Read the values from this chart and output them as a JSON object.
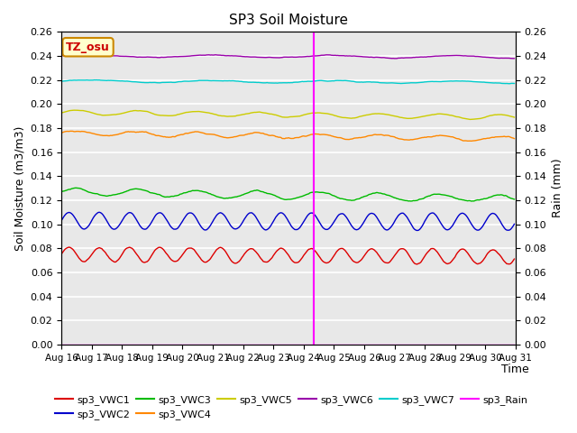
{
  "title": "SP3 Soil Moisture",
  "ylabel_left": "Soil Moisture (m3/m3)",
  "ylabel_right": "Rain (mm)",
  "xlabel": "Time",
  "ylim": [
    0.0,
    0.26
  ],
  "x_tick_labels": [
    "Aug 16",
    "Aug 17",
    "Aug 18",
    "Aug 19",
    "Aug 20",
    "Aug 21",
    "Aug 22",
    "Aug 23",
    "Aug 24",
    "Aug 25",
    "Aug 26",
    "Aug 27",
    "Aug 28",
    "Aug 29",
    "Aug 30",
    "Aug 31"
  ],
  "series_order": [
    "sp3_VWC1",
    "sp3_VWC2",
    "sp3_VWC3",
    "sp3_VWC4",
    "sp3_VWC5",
    "sp3_VWC6",
    "sp3_VWC7"
  ],
  "series": {
    "sp3_VWC1": {
      "color": "#dd0000",
      "base": 0.075,
      "amp": 0.006,
      "period_hours": 24,
      "trend": -0.002,
      "noise_scale": 0.002,
      "seed": 1
    },
    "sp3_VWC2": {
      "color": "#0000cc",
      "base": 0.103,
      "amp": 0.007,
      "period_hours": 24,
      "trend": -0.001,
      "noise_scale": 0.001,
      "seed": 2
    },
    "sp3_VWC3": {
      "color": "#00bb00",
      "base": 0.127,
      "amp": 0.003,
      "period_hours": 48,
      "trend": -0.006,
      "noise_scale": 0.002,
      "seed": 3
    },
    "sp3_VWC4": {
      "color": "#ff8800",
      "base": 0.176,
      "amp": 0.002,
      "period_hours": 48,
      "trend": -0.005,
      "noise_scale": 0.002,
      "seed": 4
    },
    "sp3_VWC5": {
      "color": "#cccc00",
      "base": 0.193,
      "amp": 0.002,
      "period_hours": 48,
      "trend": -0.004,
      "noise_scale": 0.001,
      "seed": 5
    },
    "sp3_VWC6": {
      "color": "#9900aa",
      "base": 0.24,
      "amp": 0.001,
      "period_hours": 96,
      "trend": -0.001,
      "noise_scale": 0.001,
      "seed": 6
    },
    "sp3_VWC7": {
      "color": "#00cccc",
      "base": 0.219,
      "amp": 0.001,
      "period_hours": 96,
      "trend": -0.001,
      "noise_scale": 0.001,
      "seed": 7
    }
  },
  "rain_color": "#ff00ff",
  "vline_day": 8.33,
  "annotation_label": "TZ_osu",
  "annotation_color": "#cc0000",
  "annotation_bg": "#ffffcc",
  "annotation_border": "#cc8800",
  "plot_bg_color": "#e8e8e8",
  "grid_color": "#ffffff",
  "title_fontsize": 11,
  "tick_fontsize": 8,
  "label_fontsize": 9,
  "legend_fontsize": 8
}
